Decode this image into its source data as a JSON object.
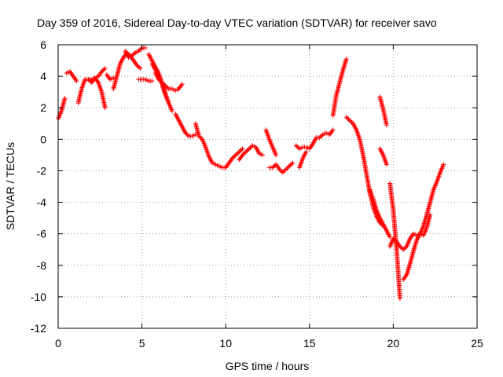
{
  "chart_data": {
    "type": "scatter",
    "title": "Day 359 of 2016, Sidereal Day-to-day VTEC variation (SDTVAR) for receiver savo",
    "xlabel": "GPS time / hours",
    "ylabel": "SDTVAR / TECUs",
    "xlim": [
      0,
      25
    ],
    "ylim": [
      -12,
      6
    ],
    "xticks": [
      0,
      5,
      10,
      15,
      20,
      25
    ],
    "yticks": [
      -12,
      -10,
      -8,
      -6,
      -4,
      -2,
      0,
      2,
      4,
      6
    ],
    "grid": true,
    "legend": "none",
    "marker": "plus",
    "color": "#ff0000",
    "series": [
      {
        "segments": [
          {
            "x": [
              0.0,
              0.2,
              0.4
            ],
            "y": [
              1.3,
              1.8,
              2.6
            ]
          },
          {
            "x": [
              0.5,
              0.7,
              0.9,
              1.1
            ],
            "y": [
              4.2,
              4.3,
              4.0,
              3.7
            ]
          },
          {
            "x": [
              1.2,
              1.4,
              1.6,
              1.8,
              2.0,
              2.2,
              2.4,
              2.6,
              2.8
            ],
            "y": [
              2.3,
              3.2,
              3.8,
              3.8,
              3.6,
              3.9,
              3.6,
              3.0,
              2.0
            ]
          },
          {
            "x": [
              1.8,
              2.0,
              2.2,
              2.4,
              2.6,
              2.8
            ],
            "y": [
              3.8,
              3.8,
              3.9,
              4.0,
              4.3,
              4.5
            ]
          },
          {
            "x": [
              2.9,
              3.1,
              3.3
            ],
            "y": [
              4.1,
              3.8,
              3.9
            ]
          },
          {
            "x": [
              3.3,
              3.5,
              3.7,
              3.9,
              4.1,
              4.3,
              4.5,
              4.7,
              4.9
            ],
            "y": [
              3.2,
              4.0,
              4.8,
              5.2,
              5.5,
              5.3,
              5.0,
              4.7,
              4.5
            ]
          },
          {
            "x": [
              4.0,
              4.2,
              4.4,
              4.6,
              4.8,
              5.0,
              5.2
            ],
            "y": [
              5.6,
              5.2,
              5.3,
              5.5,
              5.6,
              5.8,
              5.8
            ]
          },
          {
            "x": [
              4.8,
              5.0,
              5.2,
              5.4,
              5.6
            ],
            "y": [
              3.8,
              3.8,
              3.8,
              3.7,
              3.7
            ]
          },
          {
            "x": [
              5.4,
              5.6,
              5.8,
              6.0,
              6.2,
              6.4,
              6.6,
              6.8
            ],
            "y": [
              5.4,
              5.0,
              4.6,
              4.2,
              3.6,
              2.9,
              2.3,
              1.8
            ]
          },
          {
            "x": [
              5.6,
              5.8,
              6.0,
              6.2,
              6.4,
              6.6
            ],
            "y": [
              4.8,
              4.4,
              4.0,
              3.5,
              2.8,
              2.3
            ]
          },
          {
            "x": [
              5.8,
              6.0,
              6.2,
              6.4,
              6.6,
              6.8,
              7.0,
              7.2,
              7.4
            ],
            "y": [
              4.2,
              3.8,
              3.6,
              3.4,
              3.2,
              3.2,
              3.1,
              3.2,
              3.5
            ]
          },
          {
            "x": [
              7.0,
              7.2,
              7.4,
              7.6,
              7.8,
              8.0,
              8.2
            ],
            "y": [
              1.6,
              1.2,
              0.8,
              0.4,
              0.2,
              0.2,
              0.3
            ]
          },
          {
            "x": [
              8.2,
              8.4,
              8.6,
              8.8,
              9.0,
              9.2,
              9.4,
              9.6,
              9.8,
              10.0,
              10.2,
              10.4,
              10.6,
              10.8,
              11.0
            ],
            "y": [
              1.0,
              0.2,
              0.0,
              -0.5,
              -1.1,
              -1.5,
              -1.6,
              -1.7,
              -1.8,
              -1.8,
              -1.5,
              -1.2,
              -1.0,
              -0.8,
              -0.6
            ]
          },
          {
            "x": [
              10.8,
              11.0,
              11.2,
              11.4,
              11.6,
              11.8,
              12.0,
              12.2
            ],
            "y": [
              -1.3,
              -1.0,
              -0.8,
              -0.6,
              -0.4,
              -0.5,
              -0.9,
              -1.0
            ]
          },
          {
            "x": [
              12.4,
              12.6,
              12.8,
              13.0
            ],
            "y": [
              0.6,
              0.0,
              -0.5,
              -1.0
            ]
          },
          {
            "x": [
              12.6,
              12.8,
              13.0,
              13.2,
              13.4,
              13.6,
              13.8,
              14.0
            ],
            "y": [
              -1.8,
              -1.8,
              -1.6,
              -1.9,
              -2.1,
              -1.9,
              -1.7,
              -1.5
            ]
          },
          {
            "x": [
              14.2,
              14.4,
              14.6,
              14.8,
              15.0,
              15.2,
              15.4,
              15.6,
              15.8,
              16.0,
              16.2,
              16.4
            ],
            "y": [
              -0.4,
              -0.6,
              -0.5,
              -0.5,
              -0.6,
              -0.3,
              0.1,
              0.1,
              0.3,
              0.4,
              0.3,
              0.6
            ]
          },
          {
            "x": [
              14.4,
              14.6,
              14.8
            ],
            "y": [
              -1.8,
              -1.2,
              -0.8
            ]
          },
          {
            "x": [
              16.4,
              16.6,
              16.8,
              17.0,
              17.2
            ],
            "y": [
              1.5,
              2.8,
              3.6,
              4.4,
              5.1
            ]
          },
          {
            "x": [
              17.2,
              17.4,
              17.6,
              17.8,
              18.0,
              18.2,
              18.4,
              18.6,
              18.8,
              19.0,
              19.2,
              19.4
            ],
            "y": [
              1.4,
              1.2,
              1.0,
              0.6,
              0.0,
              -1.0,
              -2.2,
              -3.4,
              -4.3,
              -4.9,
              -5.3,
              -5.5
            ]
          },
          {
            "x": [
              18.6,
              18.8,
              19.0,
              19.2,
              19.4,
              19.6,
              19.8
            ],
            "y": [
              -3.2,
              -3.8,
              -4.5,
              -5.0,
              -5.4,
              -5.8,
              -6.2
            ]
          },
          {
            "x": [
              19.2,
              19.4,
              19.6
            ],
            "y": [
              2.7,
              1.9,
              0.9
            ]
          },
          {
            "x": [
              19.2,
              19.4,
              19.6
            ],
            "y": [
              -0.6,
              -1.0,
              -1.6
            ]
          },
          {
            "x": [
              19.8,
              20.0,
              20.2,
              20.4
            ],
            "y": [
              -2.8,
              -4.5,
              -7.0,
              -10.1
            ]
          },
          {
            "x": [
              19.8,
              20.0,
              20.2,
              20.4,
              20.6,
              20.8,
              21.0,
              21.2,
              21.4,
              21.6,
              21.8,
              22.0,
              22.2,
              22.4,
              22.6,
              22.8,
              23.0
            ],
            "y": [
              -6.8,
              -6.3,
              -6.5,
              -6.8,
              -7.0,
              -6.8,
              -6.3,
              -6.0,
              -6.1,
              -6.0,
              -5.5,
              -4.8,
              -4.0,
              -3.2,
              -2.7,
              -2.1,
              -1.6
            ]
          },
          {
            "x": [
              20.6,
              20.8,
              21.0,
              21.2,
              21.4,
              21.6,
              21.8,
              22.0,
              22.2
            ],
            "y": [
              -8.9,
              -8.6,
              -7.9,
              -7.1,
              -6.4,
              -6.0,
              -6.1,
              -5.6,
              -4.8
            ]
          }
        ]
      }
    ]
  }
}
